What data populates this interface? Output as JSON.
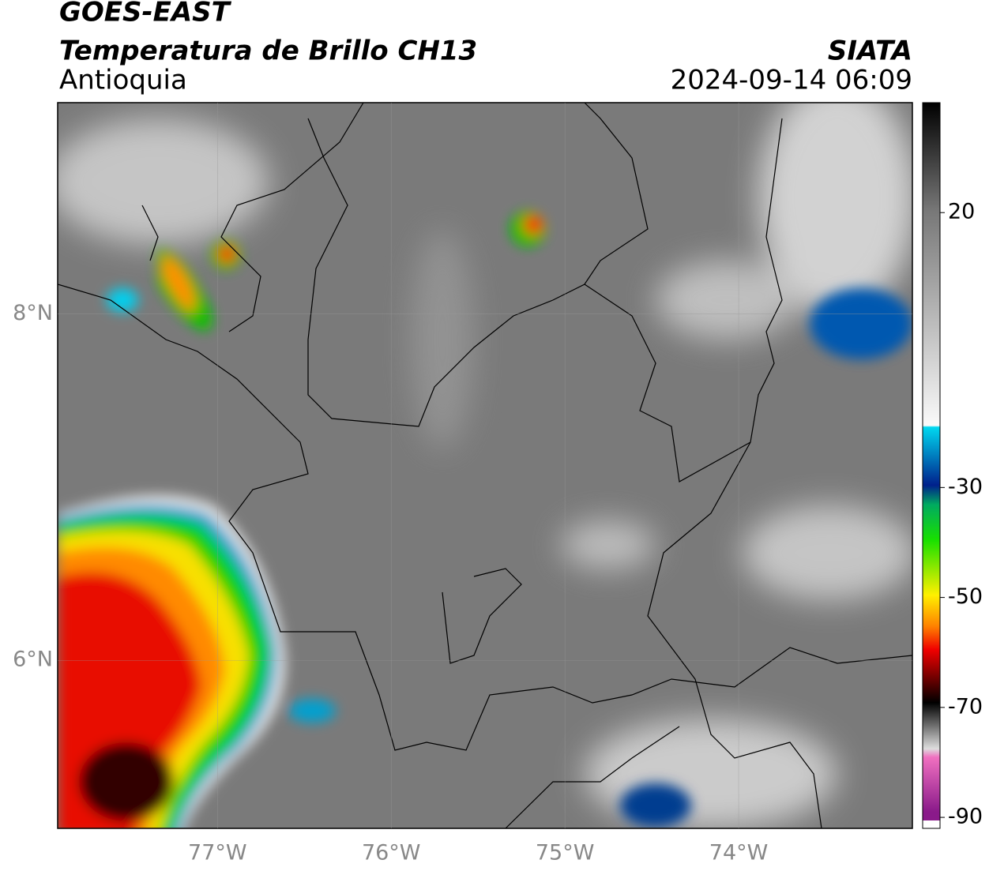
{
  "header": {
    "title": "GOES-EAST",
    "subtitle": "Temperatura de Brillo CH13",
    "region": "Antioquia",
    "source": "SIATA",
    "datetime": "2024-09-14 06:09"
  },
  "map": {
    "xlim": [
      -77.92,
      -73.0
    ],
    "ylim": [
      5.03,
      9.22
    ],
    "xticks": [
      {
        "value": -77,
        "label": "77°W"
      },
      {
        "value": -76,
        "label": "76°W"
      },
      {
        "value": -75,
        "label": "75°W"
      },
      {
        "value": -74,
        "label": "74°W"
      }
    ],
    "yticks": [
      {
        "value": 6,
        "label": "6°N"
      },
      {
        "value": 8,
        "label": "8°N"
      }
    ],
    "grid": true
  },
  "colorbar": {
    "lim": [
      -92,
      40
    ],
    "ticks": [
      20,
      -30,
      -50,
      -70,
      -90
    ]
  }
}
